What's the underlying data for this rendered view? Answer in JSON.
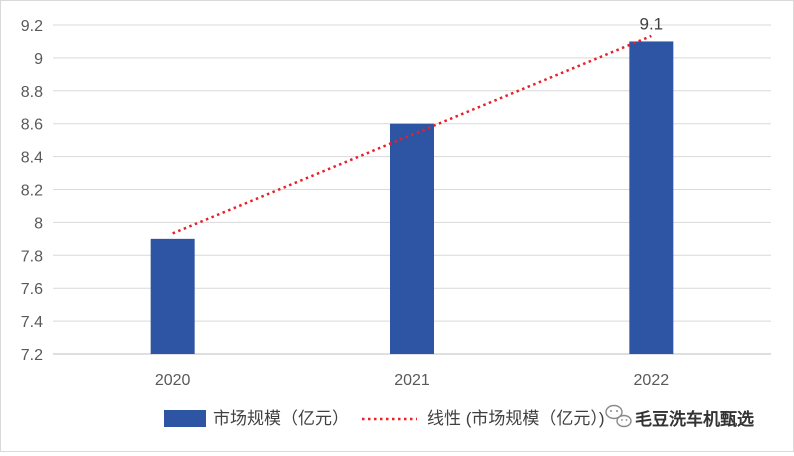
{
  "chart_data": {
    "type": "bar",
    "categories": [
      "2020",
      "2021",
      "2022"
    ],
    "series": [
      {
        "name": "市场规模（亿元）",
        "values": [
          7.9,
          8.6,
          9.1
        ],
        "color": "#2e54a4"
      }
    ],
    "trendline": {
      "name": "线性 (市场规模（亿元）)",
      "type": "linear",
      "color": "#e8202a",
      "style": "dotted"
    },
    "ylim": [
      7.2,
      9.2
    ],
    "yticks": [
      7.2,
      7.4,
      7.6,
      7.8,
      8,
      8.2,
      8.4,
      8.6,
      8.8,
      9,
      9.2
    ],
    "ytick_labels": [
      "7.2",
      "7.4",
      "7.6",
      "7.8",
      "8",
      "8.2",
      "8.4",
      "8.6",
      "8.8",
      "9",
      "9.2"
    ],
    "data_labels": [
      {
        "category": "2022",
        "text": "9.1"
      }
    ],
    "grid": true,
    "legend_position": "bottom",
    "title": "",
    "xlabel": "",
    "ylabel": ""
  },
  "watermark": {
    "text": "毛豆洗车机甄选",
    "icon": "wechat-logo-icon"
  }
}
